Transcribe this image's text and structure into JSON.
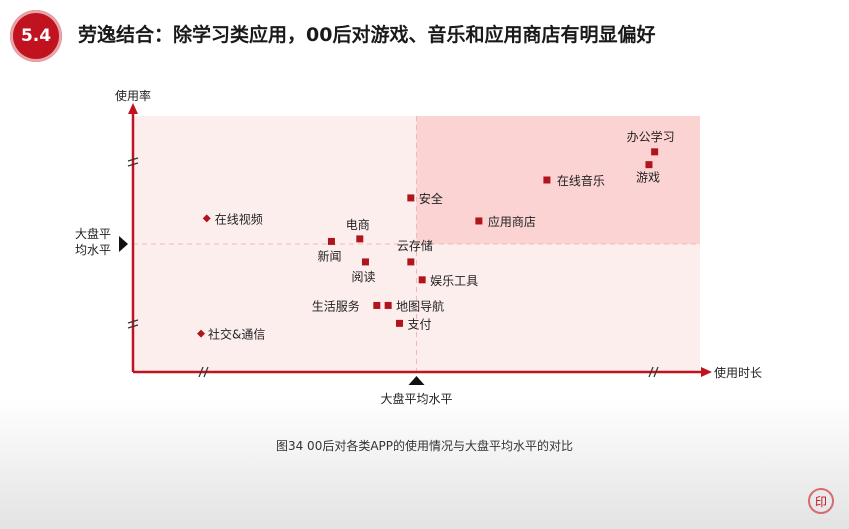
{
  "header": {
    "section_number": "5.4",
    "title": "劳逸结合：除学习类应用，00后对游戏、音乐和应用商店有明显偏好"
  },
  "caption": "图34 00后对各类APP的使用情况与大盘平均水平的对比",
  "colors": {
    "accent": "#c0121f",
    "axis": "#c0121f",
    "plot_bg": "#fdeeee",
    "highlight_quadrant": "#fbd3d3",
    "marker": "#b0151c"
  },
  "chart_data": {
    "type": "scatter",
    "xlabel": "使用时长",
    "ylabel": "使用率",
    "x_reference_label": "大盘平均水平",
    "y_reference_label_line1": "大盘平",
    "y_reference_label_line2": "均水平",
    "x_reference": 50,
    "y_reference": 50,
    "xlim": [
      0,
      100
    ],
    "ylim": [
      0,
      100
    ],
    "grid": false,
    "points": [
      {
        "name": "办公学习",
        "x": 92,
        "y": 86
      },
      {
        "name": "游戏",
        "x": 91,
        "y": 81
      },
      {
        "name": "在线音乐",
        "x": 73,
        "y": 75
      },
      {
        "name": "安全",
        "x": 49,
        "y": 68
      },
      {
        "name": "应用商店",
        "x": 61,
        "y": 59
      },
      {
        "name": "在线视频",
        "x": 13,
        "y": 60
      },
      {
        "name": "电商",
        "x": 40,
        "y": 52
      },
      {
        "name": "新闻",
        "x": 35,
        "y": 51
      },
      {
        "name": "云存储",
        "x": 49,
        "y": 43
      },
      {
        "name": "阅读",
        "x": 41,
        "y": 43
      },
      {
        "name": "娱乐工具",
        "x": 51,
        "y": 36
      },
      {
        "name": "生活服务",
        "x": 43,
        "y": 26
      },
      {
        "name": "地图导航",
        "x": 45,
        "y": 26
      },
      {
        "name": "支付",
        "x": 47,
        "y": 19
      },
      {
        "name": "社交&通信",
        "x": 12,
        "y": 15
      }
    ]
  }
}
